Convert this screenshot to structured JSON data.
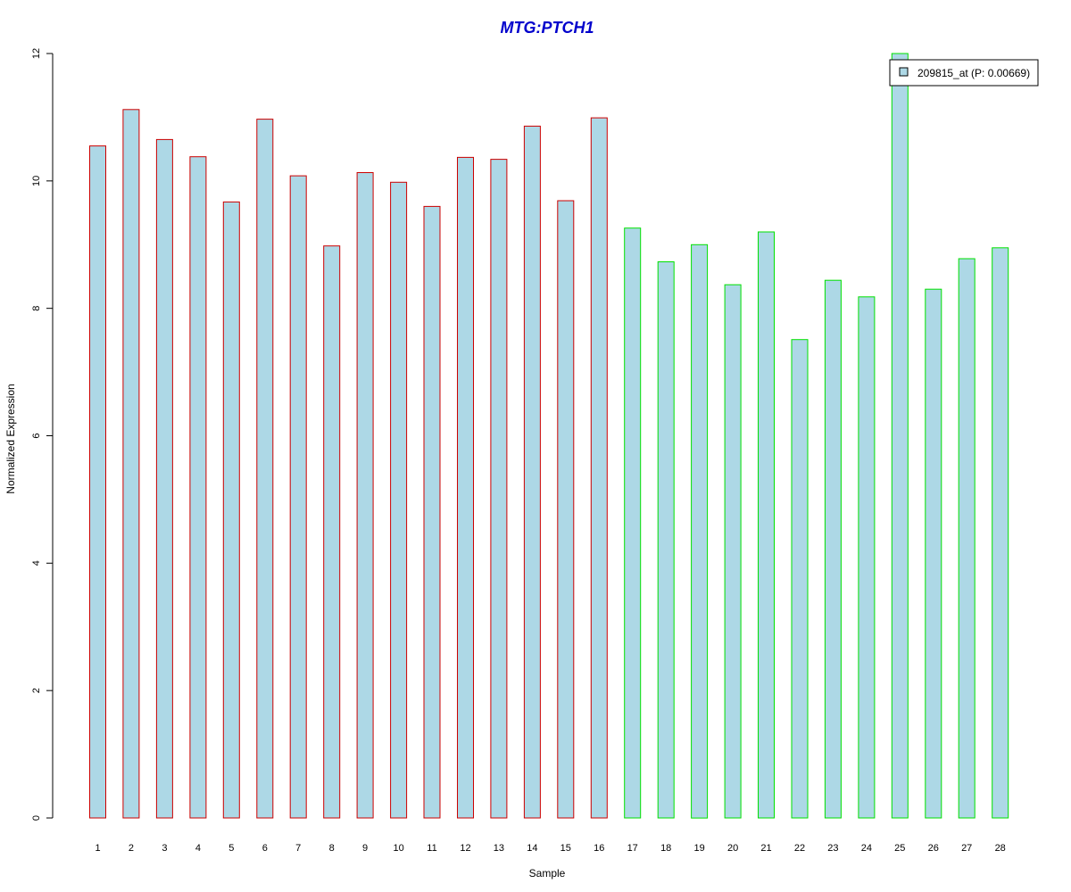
{
  "chart_data": {
    "type": "bar",
    "title": "MTG:PTCH1",
    "xlabel": "Sample",
    "ylabel": "Normalized Expression",
    "ylim": [
      0,
      12
    ],
    "yticks": [
      0,
      2,
      4,
      6,
      8,
      10,
      12
    ],
    "categories": [
      "1",
      "2",
      "3",
      "4",
      "5",
      "6",
      "7",
      "8",
      "9",
      "10",
      "11",
      "12",
      "13",
      "14",
      "15",
      "16",
      "17",
      "18",
      "19",
      "20",
      "21",
      "22",
      "23",
      "24",
      "25",
      "26",
      "27",
      "28"
    ],
    "series": [
      {
        "name": "209815_at (P: 0.00669)",
        "values": [
          10.55,
          11.12,
          10.65,
          10.38,
          9.67,
          10.97,
          10.08,
          8.98,
          10.13,
          9.98,
          9.6,
          10.37,
          10.34,
          10.86,
          9.69,
          10.99,
          9.26,
          8.73,
          9.0,
          8.37,
          9.2,
          7.51,
          8.44,
          8.18,
          12.0,
          8.3,
          8.78,
          8.95
        ]
      }
    ],
    "bar_fill": "#add8e6",
    "group_colors": [
      "#cc0000",
      "#cc0000",
      "#cc0000",
      "#cc0000",
      "#cc0000",
      "#cc0000",
      "#cc0000",
      "#cc0000",
      "#cc0000",
      "#cc0000",
      "#cc0000",
      "#cc0000",
      "#cc0000",
      "#cc0000",
      "#cc0000",
      "#cc0000",
      "#00e000",
      "#00e000",
      "#00e000",
      "#00e000",
      "#00e000",
      "#00e000",
      "#00e000",
      "#00e000",
      "#00e000",
      "#00e000",
      "#00e000",
      "#00e000"
    ],
    "grid": false,
    "legend_position": "top-right"
  }
}
